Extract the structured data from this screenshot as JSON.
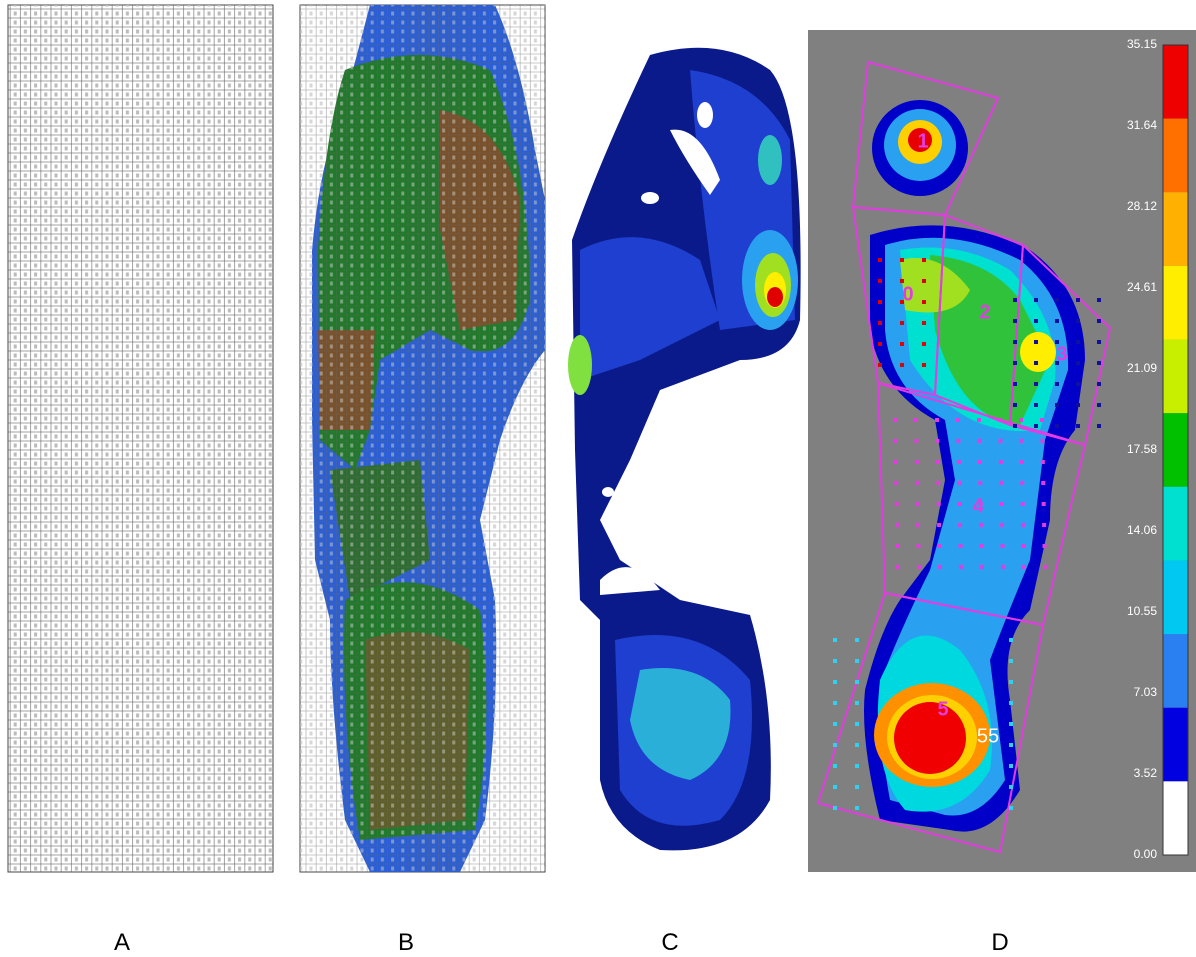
{
  "panels": [
    {
      "label": "A"
    },
    {
      "label": "B"
    },
    {
      "label": "C"
    },
    {
      "label": "D"
    }
  ],
  "colorbar": {
    "ticks": [
      "35.15",
      "31.64",
      "28.12",
      "24.61",
      "21.09",
      "17.58",
      "14.06",
      "10.55",
      "7.03",
      "3.52",
      "0.00"
    ]
  },
  "zones": [
    {
      "label": "1"
    },
    {
      "label": "0"
    },
    {
      "label": "2"
    },
    {
      "label": "3"
    },
    {
      "label": "4"
    },
    {
      "label": "5"
    }
  ],
  "annotation": "55"
}
